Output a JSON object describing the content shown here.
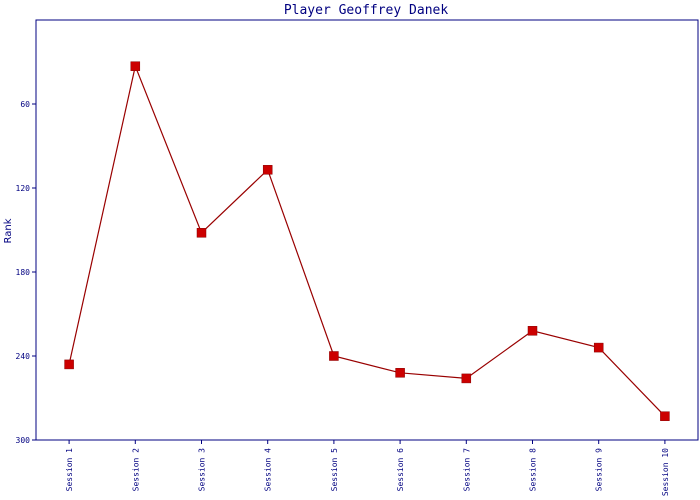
{
  "chart_data": {
    "type": "line",
    "title": "Player Geoffrey Danek",
    "xlabel": "",
    "ylabel": "Rank",
    "categories": [
      "Session 1",
      "Session 2",
      "Session 3",
      "Session 4",
      "Session 5",
      "Session 6",
      "Session 7",
      "Session 8",
      "Session 9",
      "Session 10"
    ],
    "series": [
      {
        "values": [
          246,
          33,
          152,
          107,
          240,
          252,
          256,
          222,
          234,
          283
        ]
      }
    ],
    "ylim": [
      300,
      0
    ],
    "y_inverted": true,
    "yticks": [
      60,
      120,
      180,
      240,
      300
    ],
    "grid": false,
    "colors": {
      "line": "#990000",
      "marker": "#cc0000",
      "axis": "#000080",
      "text": "#000080"
    }
  }
}
